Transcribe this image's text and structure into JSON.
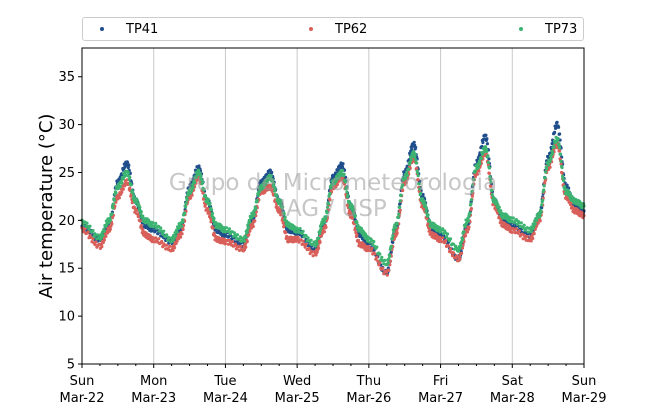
{
  "chart_data": {
    "type": "scatter",
    "title": "",
    "xlabel": "",
    "ylabel": "Air temperature (°C)",
    "ylim": [
      5,
      38
    ],
    "yticks": [
      5,
      10,
      15,
      20,
      25,
      30,
      35
    ],
    "xlim": [
      "2020-03-22",
      "2020-03-29"
    ],
    "xtick_labels": [
      {
        "day": "Sun",
        "date": "Mar-22"
      },
      {
        "day": "Mon",
        "date": "Mar-23"
      },
      {
        "day": "Tue",
        "date": "Mar-24"
      },
      {
        "day": "Wed",
        "date": "Mar-25"
      },
      {
        "day": "Thu",
        "date": "Mar-26"
      },
      {
        "day": "Fri",
        "date": "Mar-27"
      },
      {
        "day": "Sat",
        "date": "Mar-28"
      },
      {
        "day": "Sun",
        "date": "Mar-29"
      }
    ],
    "grid": "vertical",
    "legend_position": "top",
    "watermark": [
      "Grupo de Micrometeorologia",
      "IAG / USP"
    ],
    "series": [
      {
        "name": "TP41",
        "color": "#1f4e8c",
        "points": [
          [
            "2020-03-22T00:00",
            19.4
          ],
          [
            "2020-03-22T06:00",
            18.0
          ],
          [
            "2020-03-22T09:00",
            19.5
          ],
          [
            "2020-03-22T12:00",
            24.0
          ],
          [
            "2020-03-22T15:00",
            26.0
          ],
          [
            "2020-03-22T18:00",
            22.0
          ],
          [
            "2020-03-22T21:00",
            19.5
          ],
          [
            "2020-03-23T00:00",
            19.0
          ],
          [
            "2020-03-23T06:00",
            17.8
          ],
          [
            "2020-03-23T09:00",
            19.0
          ],
          [
            "2020-03-23T12:00",
            23.5
          ],
          [
            "2020-03-23T15:00",
            25.5
          ],
          [
            "2020-03-23T18:00",
            22.0
          ],
          [
            "2020-03-23T21:00",
            19.0
          ],
          [
            "2020-03-24T00:00",
            18.5
          ],
          [
            "2020-03-24T06:00",
            17.5
          ],
          [
            "2020-03-24T09:00",
            20.0
          ],
          [
            "2020-03-24T12:00",
            24.0
          ],
          [
            "2020-03-24T15:00",
            25.0
          ],
          [
            "2020-03-24T18:00",
            22.0
          ],
          [
            "2020-03-24T21:00",
            19.0
          ],
          [
            "2020-03-25T00:00",
            18.8
          ],
          [
            "2020-03-25T06:00",
            17.0
          ],
          [
            "2020-03-25T09:00",
            19.5
          ],
          [
            "2020-03-25T12:00",
            24.5
          ],
          [
            "2020-03-25T15:00",
            25.8
          ],
          [
            "2020-03-25T18:00",
            21.5
          ],
          [
            "2020-03-25T21:00",
            18.5
          ],
          [
            "2020-03-26T00:00",
            17.5
          ],
          [
            "2020-03-26T06:00",
            14.5
          ],
          [
            "2020-03-26T09:00",
            19.0
          ],
          [
            "2020-03-26T12:00",
            25.0
          ],
          [
            "2020-03-26T15:00",
            28.0
          ],
          [
            "2020-03-26T18:00",
            22.5
          ],
          [
            "2020-03-26T21:00",
            19.0
          ],
          [
            "2020-03-27T00:00",
            18.5
          ],
          [
            "2020-03-27T06:00",
            16.0
          ],
          [
            "2020-03-27T09:00",
            19.5
          ],
          [
            "2020-03-27T12:00",
            26.0
          ],
          [
            "2020-03-27T15:00",
            28.8
          ],
          [
            "2020-03-27T18:00",
            22.0
          ],
          [
            "2020-03-27T21:00",
            20.0
          ],
          [
            "2020-03-28T00:00",
            19.5
          ],
          [
            "2020-03-28T06:00",
            18.5
          ],
          [
            "2020-03-28T09:00",
            20.5
          ],
          [
            "2020-03-28T12:00",
            26.5
          ],
          [
            "2020-03-28T15:00",
            30.0
          ],
          [
            "2020-03-28T18:00",
            23.5
          ],
          [
            "2020-03-28T21:00",
            21.5
          ],
          [
            "2020-03-29T00:00",
            21.0
          ]
        ]
      },
      {
        "name": "TP62",
        "color": "#d9605a",
        "points": [
          [
            "2020-03-22T00:00",
            19.0
          ],
          [
            "2020-03-22T06:00",
            17.3
          ],
          [
            "2020-03-22T09:00",
            19.0
          ],
          [
            "2020-03-22T12:00",
            22.5
          ],
          [
            "2020-03-22T15:00",
            24.0
          ],
          [
            "2020-03-22T18:00",
            21.0
          ],
          [
            "2020-03-22T21:00",
            18.5
          ],
          [
            "2020-03-23T00:00",
            18.0
          ],
          [
            "2020-03-23T06:00",
            17.0
          ],
          [
            "2020-03-23T09:00",
            18.5
          ],
          [
            "2020-03-23T12:00",
            22.5
          ],
          [
            "2020-03-23T15:00",
            24.5
          ],
          [
            "2020-03-23T18:00",
            21.0
          ],
          [
            "2020-03-23T21:00",
            18.0
          ],
          [
            "2020-03-24T00:00",
            17.8
          ],
          [
            "2020-03-24T06:00",
            17.0
          ],
          [
            "2020-03-24T09:00",
            19.5
          ],
          [
            "2020-03-24T12:00",
            23.0
          ],
          [
            "2020-03-24T15:00",
            23.5
          ],
          [
            "2020-03-24T18:00",
            21.0
          ],
          [
            "2020-03-24T21:00",
            18.0
          ],
          [
            "2020-03-25T00:00",
            18.0
          ],
          [
            "2020-03-25T06:00",
            16.5
          ],
          [
            "2020-03-25T09:00",
            19.0
          ],
          [
            "2020-03-25T12:00",
            23.5
          ],
          [
            "2020-03-25T15:00",
            24.5
          ],
          [
            "2020-03-25T18:00",
            20.5
          ],
          [
            "2020-03-25T21:00",
            17.5
          ],
          [
            "2020-03-26T00:00",
            17.0
          ],
          [
            "2020-03-26T06:00",
            14.5
          ],
          [
            "2020-03-26T09:00",
            18.5
          ],
          [
            "2020-03-26T12:00",
            24.0
          ],
          [
            "2020-03-26T15:00",
            26.5
          ],
          [
            "2020-03-26T18:00",
            21.5
          ],
          [
            "2020-03-26T21:00",
            18.5
          ],
          [
            "2020-03-27T00:00",
            18.0
          ],
          [
            "2020-03-27T06:00",
            16.0
          ],
          [
            "2020-03-27T09:00",
            19.0
          ],
          [
            "2020-03-27T12:00",
            25.0
          ],
          [
            "2020-03-27T15:00",
            27.0
          ],
          [
            "2020-03-27T18:00",
            21.5
          ],
          [
            "2020-03-27T21:00",
            19.5
          ],
          [
            "2020-03-28T00:00",
            19.0
          ],
          [
            "2020-03-28T06:00",
            18.0
          ],
          [
            "2020-03-28T09:00",
            20.0
          ],
          [
            "2020-03-28T12:00",
            25.5
          ],
          [
            "2020-03-28T15:00",
            28.0
          ],
          [
            "2020-03-28T18:00",
            22.5
          ],
          [
            "2020-03-28T21:00",
            21.0
          ],
          [
            "2020-03-29T00:00",
            20.5
          ]
        ]
      },
      {
        "name": "TP73",
        "color": "#3cb371",
        "points": [
          [
            "2020-03-22T00:00",
            19.8
          ],
          [
            "2020-03-22T06:00",
            18.2
          ],
          [
            "2020-03-22T09:00",
            20.0
          ],
          [
            "2020-03-22T12:00",
            23.5
          ],
          [
            "2020-03-22T15:00",
            25.0
          ],
          [
            "2020-03-22T18:00",
            22.0
          ],
          [
            "2020-03-22T21:00",
            20.0
          ],
          [
            "2020-03-23T00:00",
            19.5
          ],
          [
            "2020-03-23T06:00",
            18.0
          ],
          [
            "2020-03-23T09:00",
            19.5
          ],
          [
            "2020-03-23T12:00",
            23.0
          ],
          [
            "2020-03-23T15:00",
            25.0
          ],
          [
            "2020-03-23T18:00",
            22.0
          ],
          [
            "2020-03-23T21:00",
            19.5
          ],
          [
            "2020-03-24T00:00",
            19.0
          ],
          [
            "2020-03-24T06:00",
            18.0
          ],
          [
            "2020-03-24T09:00",
            20.5
          ],
          [
            "2020-03-24T12:00",
            23.5
          ],
          [
            "2020-03-24T15:00",
            24.5
          ],
          [
            "2020-03-24T18:00",
            22.0
          ],
          [
            "2020-03-24T21:00",
            19.5
          ],
          [
            "2020-03-25T00:00",
            19.0
          ],
          [
            "2020-03-25T06:00",
            17.5
          ],
          [
            "2020-03-25T09:00",
            20.0
          ],
          [
            "2020-03-25T12:00",
            24.0
          ],
          [
            "2020-03-25T15:00",
            25.0
          ],
          [
            "2020-03-25T18:00",
            21.5
          ],
          [
            "2020-03-25T21:00",
            19.0
          ],
          [
            "2020-03-26T00:00",
            18.0
          ],
          [
            "2020-03-26T06:00",
            15.5
          ],
          [
            "2020-03-26T09:00",
            19.5
          ],
          [
            "2020-03-26T12:00",
            24.5
          ],
          [
            "2020-03-26T15:00",
            27.0
          ],
          [
            "2020-03-26T18:00",
            22.0
          ],
          [
            "2020-03-26T21:00",
            19.5
          ],
          [
            "2020-03-27T00:00",
            19.0
          ],
          [
            "2020-03-27T06:00",
            17.0
          ],
          [
            "2020-03-27T09:00",
            20.0
          ],
          [
            "2020-03-27T12:00",
            25.5
          ],
          [
            "2020-03-27T15:00",
            27.5
          ],
          [
            "2020-03-27T18:00",
            22.0
          ],
          [
            "2020-03-27T21:00",
            20.5
          ],
          [
            "2020-03-28T00:00",
            20.0
          ],
          [
            "2020-03-28T06:00",
            19.0
          ],
          [
            "2020-03-28T09:00",
            20.5
          ],
          [
            "2020-03-28T12:00",
            26.0
          ],
          [
            "2020-03-28T15:00",
            28.5
          ],
          [
            "2020-03-28T18:00",
            23.0
          ],
          [
            "2020-03-28T21:00",
            22.0
          ],
          [
            "2020-03-29T00:00",
            21.5
          ]
        ]
      }
    ]
  }
}
